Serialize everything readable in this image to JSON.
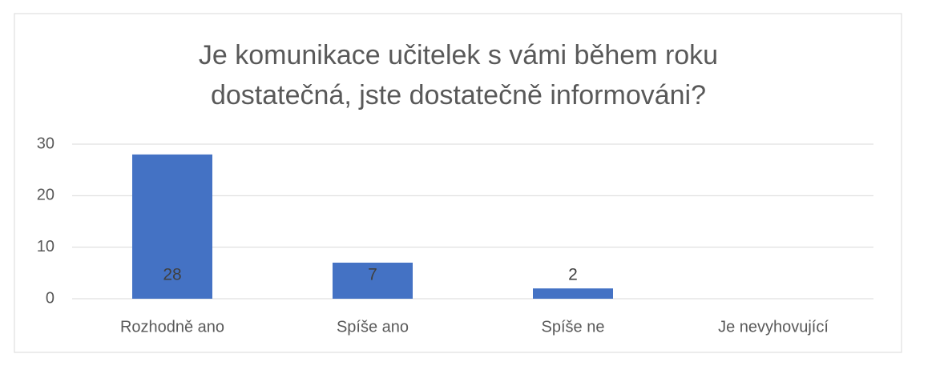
{
  "chart_data": {
    "type": "bar",
    "title_lines": [
      "Je komunikace učitelek s vámi během roku",
      "dostatečná, jste dostatečně informováni?"
    ],
    "categories": [
      "Rozhodně ano",
      "Spíše ano",
      "Spíše ne",
      "Je nevyhovující"
    ],
    "values": [
      28,
      7,
      2,
      null
    ],
    "color": "#4472c4",
    "ylim": [
      0,
      30
    ],
    "yticks": [
      0,
      10,
      20,
      30
    ],
    "grid": true
  }
}
